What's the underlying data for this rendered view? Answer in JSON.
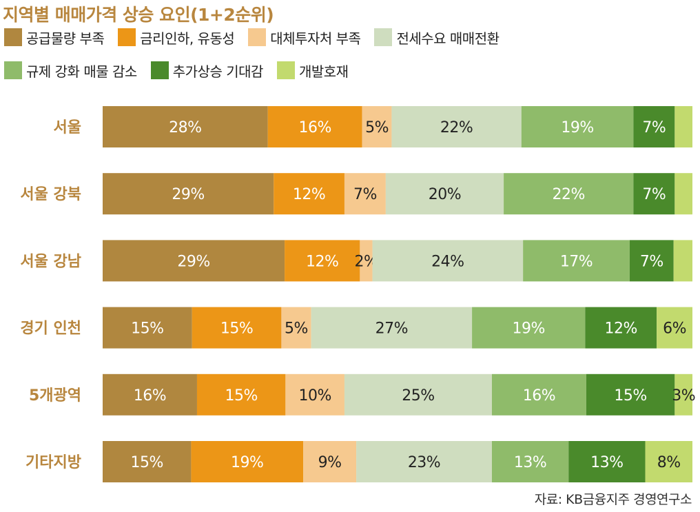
{
  "title": "지역별 매매가격 상승 요인(1+2순위)",
  "source": "자료: KB금융지주 경영연구소",
  "colors": [
    "#b0873f",
    "#ec9617",
    "#f6c98f",
    "#cfddbf",
    "#8fbb6a",
    "#4a8a2b",
    "#c2da6e"
  ],
  "chart_data": {
    "type": "bar",
    "orientation": "horizontal",
    "stacked": true,
    "percent": true,
    "title": "지역별 매매가격 상승 요인(1+2순위)",
    "categories": [
      "서울",
      "서울 강북",
      "서울 강남",
      "경기 인천",
      "5개광역",
      "기타지방"
    ],
    "legend_position": "top",
    "series": [
      {
        "name": "공급물량 부족",
        "values": [
          28,
          29,
          29,
          15,
          16,
          15
        ],
        "labels": [
          "28%",
          "29%",
          "29%",
          "15%",
          "16%",
          "15%"
        ]
      },
      {
        "name": "금리인하, 유동성",
        "values": [
          16,
          12,
          12,
          15,
          15,
          19
        ],
        "labels": [
          "16%",
          "12%",
          "12%",
          "15%",
          "15%",
          "19%"
        ]
      },
      {
        "name": "대체투자처 부족",
        "values": [
          5,
          7,
          2,
          5,
          10,
          9
        ],
        "labels": [
          "5%",
          "7%",
          "2%",
          "5%",
          "10%",
          "9%"
        ]
      },
      {
        "name": "전세수요 매매전환",
        "values": [
          22,
          20,
          24,
          27,
          25,
          23
        ],
        "labels": [
          "22%",
          "20%",
          "24%",
          "27%",
          "25%",
          "23%"
        ]
      },
      {
        "name": "규제 강화 매물 감소",
        "values": [
          19,
          22,
          17,
          19,
          16,
          13
        ],
        "labels": [
          "19%",
          "22%",
          "17%",
          "19%",
          "16%",
          "13%"
        ]
      },
      {
        "name": "추가상승 기대감",
        "values": [
          7,
          7,
          7,
          12,
          15,
          13
        ],
        "labels": [
          "7%",
          "7%",
          "7%",
          "12%",
          "15%",
          "13%"
        ]
      },
      {
        "name": "개발호재",
        "values": [
          3,
          3,
          3,
          6,
          3,
          8
        ],
        "labels": [
          "",
          "",
          "",
          "6%",
          "3%",
          "8%"
        ]
      }
    ]
  }
}
